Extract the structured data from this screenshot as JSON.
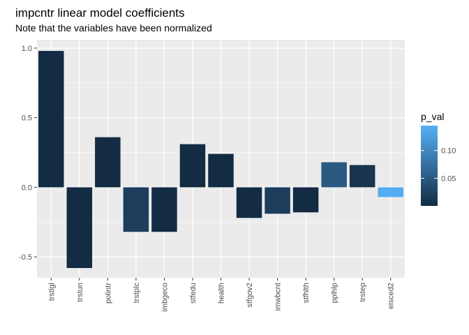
{
  "chart_data": {
    "type": "bar",
    "title": "impcntr linear model coefficients",
    "subtitle": "Note that the variables have been normalized",
    "xlabel": "",
    "ylabel": "",
    "categories": [
      "trstlgl",
      "trstun",
      "polintr",
      "trstplc",
      "imbgeco",
      "stfedu",
      "health",
      "stfgov2",
      "imwbcnt",
      "stfhlth",
      "pplhlp",
      "trstep",
      "eisced2"
    ],
    "values": [
      0.98,
      -0.58,
      0.36,
      -0.32,
      -0.32,
      0.31,
      0.24,
      -0.22,
      -0.19,
      -0.18,
      0.18,
      0.16,
      -0.07
    ],
    "p_val": [
      0.0001,
      0.0001,
      0.0001,
      0.02,
      0.0001,
      0.0001,
      0.0001,
      0.001,
      0.02,
      0.0001,
      0.05,
      0.01,
      0.14
    ],
    "ylim": [
      -0.65,
      1.06
    ],
    "yticks": [
      -0.5,
      0.0,
      0.5,
      1.0
    ],
    "ytick_labels": [
      "-0.5",
      "0.0",
      "0.5",
      "1.0"
    ],
    "grid": true,
    "legend": {
      "title": "p_val",
      "position": "right",
      "ticks": [
        0.05,
        0.1
      ],
      "tick_labels": [
        "0.05",
        "0.10"
      ],
      "range": [
        0.0,
        0.145
      ],
      "color_low": "#132B43",
      "color_high": "#56B1F7"
    },
    "panel_background": "#EBEBEB",
    "grid_color": "#FFFFFF"
  }
}
